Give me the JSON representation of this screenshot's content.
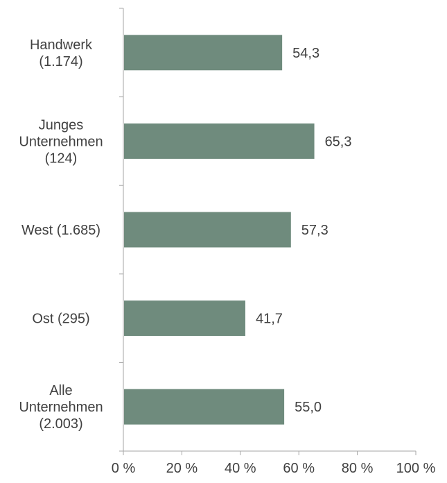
{
  "chart_data": {
    "type": "bar",
    "orientation": "horizontal",
    "categories": [
      [
        "Handwerk",
        "(1.174)"
      ],
      [
        "Junges",
        "Unternehmen",
        "(124)"
      ],
      [
        "West (1.685)"
      ],
      [
        "Ost (295)"
      ],
      [
        "Alle",
        "Unternehmen",
        "(2.003)"
      ]
    ],
    "values": [
      54.3,
      65.3,
      57.3,
      41.7,
      55.0
    ],
    "value_labels": [
      "54,3",
      "65,3",
      "57,3",
      "41,7",
      "55,0"
    ],
    "xlim": [
      0,
      100
    ],
    "xticks": [
      0,
      20,
      40,
      60,
      80,
      100
    ],
    "xtick_labels": [
      "0 %",
      "20 %",
      "40 %",
      "60 %",
      "80 %",
      "100 %"
    ],
    "title": "",
    "xlabel": "",
    "ylabel": "",
    "grid": false,
    "legend": "none",
    "bar_color": "#6f8b7d",
    "axis_color": "#a6a6a6",
    "text_color": "#404040"
  }
}
